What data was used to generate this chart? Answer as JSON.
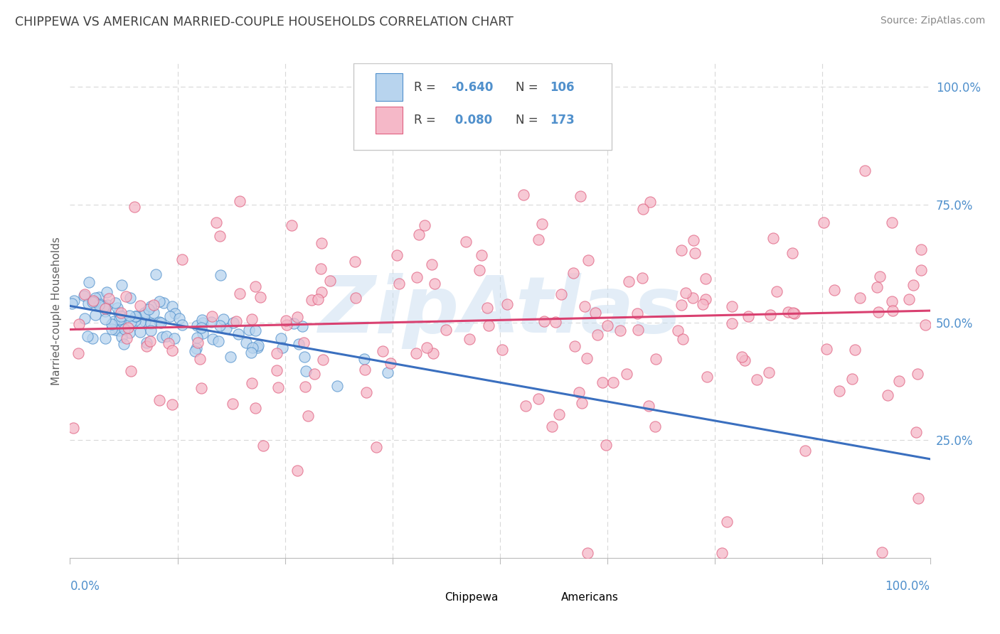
{
  "title": "CHIPPEWA VS AMERICAN MARRIED-COUPLE HOUSEHOLDS CORRELATION CHART",
  "source": "Source: ZipAtlas.com",
  "ylabel": "Married-couple Households",
  "r_chippewa": -0.64,
  "n_chippewa": 106,
  "r_american": 0.08,
  "n_american": 173,
  "chippewa_fill": "#b8d4ee",
  "american_fill": "#f5b8c8",
  "chippewa_edge": "#5090cc",
  "american_edge": "#e06080",
  "chippewa_line": "#3a6fbf",
  "american_line": "#d94070",
  "watermark_color": "#c8ddf0",
  "background_color": "#ffffff",
  "grid_color": "#d8d8d8",
  "title_color": "#404040",
  "source_color": "#888888",
  "axis_tick_color": "#5090cc",
  "ylabel_color": "#606060",
  "legend_text_color": "#404040",
  "legend_value_color": "#5090cc",
  "xlim": [
    0.0,
    1.0
  ],
  "ylim": [
    0.0,
    1.05
  ],
  "chip_line_x0": 0.0,
  "chip_line_y0": 0.535,
  "chip_line_x1": 1.0,
  "chip_line_y1": 0.21,
  "amer_line_x0": 0.0,
  "amer_line_y0": 0.485,
  "amer_line_x1": 1.0,
  "amer_line_y1": 0.525
}
